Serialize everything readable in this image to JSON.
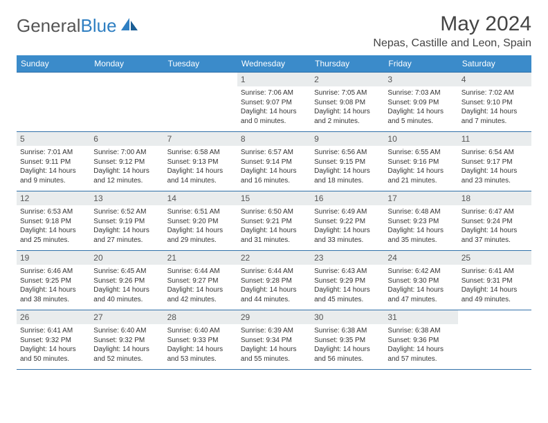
{
  "logo": {
    "text1": "General",
    "text2": "Blue"
  },
  "title": "May 2024",
  "location": "Nepas, Castille and Leon, Spain",
  "colors": {
    "header_bg": "#3b8bca",
    "header_text": "#ffffff",
    "row_separator": "#2f6fa8",
    "daynum_bg": "#e9eced",
    "text": "#333333",
    "logo_gray": "#555555",
    "logo_blue": "#2f7fc2"
  },
  "day_names": [
    "Sunday",
    "Monday",
    "Tuesday",
    "Wednesday",
    "Thursday",
    "Friday",
    "Saturday"
  ],
  "weeks": [
    [
      {
        "n": "",
        "sr": "",
        "ss": "",
        "dl1": "",
        "dl2": ""
      },
      {
        "n": "",
        "sr": "",
        "ss": "",
        "dl1": "",
        "dl2": ""
      },
      {
        "n": "",
        "sr": "",
        "ss": "",
        "dl1": "",
        "dl2": ""
      },
      {
        "n": "1",
        "sr": "Sunrise: 7:06 AM",
        "ss": "Sunset: 9:07 PM",
        "dl1": "Daylight: 14 hours",
        "dl2": "and 0 minutes."
      },
      {
        "n": "2",
        "sr": "Sunrise: 7:05 AM",
        "ss": "Sunset: 9:08 PM",
        "dl1": "Daylight: 14 hours",
        "dl2": "and 2 minutes."
      },
      {
        "n": "3",
        "sr": "Sunrise: 7:03 AM",
        "ss": "Sunset: 9:09 PM",
        "dl1": "Daylight: 14 hours",
        "dl2": "and 5 minutes."
      },
      {
        "n": "4",
        "sr": "Sunrise: 7:02 AM",
        "ss": "Sunset: 9:10 PM",
        "dl1": "Daylight: 14 hours",
        "dl2": "and 7 minutes."
      }
    ],
    [
      {
        "n": "5",
        "sr": "Sunrise: 7:01 AM",
        "ss": "Sunset: 9:11 PM",
        "dl1": "Daylight: 14 hours",
        "dl2": "and 9 minutes."
      },
      {
        "n": "6",
        "sr": "Sunrise: 7:00 AM",
        "ss": "Sunset: 9:12 PM",
        "dl1": "Daylight: 14 hours",
        "dl2": "and 12 minutes."
      },
      {
        "n": "7",
        "sr": "Sunrise: 6:58 AM",
        "ss": "Sunset: 9:13 PM",
        "dl1": "Daylight: 14 hours",
        "dl2": "and 14 minutes."
      },
      {
        "n": "8",
        "sr": "Sunrise: 6:57 AM",
        "ss": "Sunset: 9:14 PM",
        "dl1": "Daylight: 14 hours",
        "dl2": "and 16 minutes."
      },
      {
        "n": "9",
        "sr": "Sunrise: 6:56 AM",
        "ss": "Sunset: 9:15 PM",
        "dl1": "Daylight: 14 hours",
        "dl2": "and 18 minutes."
      },
      {
        "n": "10",
        "sr": "Sunrise: 6:55 AM",
        "ss": "Sunset: 9:16 PM",
        "dl1": "Daylight: 14 hours",
        "dl2": "and 21 minutes."
      },
      {
        "n": "11",
        "sr": "Sunrise: 6:54 AM",
        "ss": "Sunset: 9:17 PM",
        "dl1": "Daylight: 14 hours",
        "dl2": "and 23 minutes."
      }
    ],
    [
      {
        "n": "12",
        "sr": "Sunrise: 6:53 AM",
        "ss": "Sunset: 9:18 PM",
        "dl1": "Daylight: 14 hours",
        "dl2": "and 25 minutes."
      },
      {
        "n": "13",
        "sr": "Sunrise: 6:52 AM",
        "ss": "Sunset: 9:19 PM",
        "dl1": "Daylight: 14 hours",
        "dl2": "and 27 minutes."
      },
      {
        "n": "14",
        "sr": "Sunrise: 6:51 AM",
        "ss": "Sunset: 9:20 PM",
        "dl1": "Daylight: 14 hours",
        "dl2": "and 29 minutes."
      },
      {
        "n": "15",
        "sr": "Sunrise: 6:50 AM",
        "ss": "Sunset: 9:21 PM",
        "dl1": "Daylight: 14 hours",
        "dl2": "and 31 minutes."
      },
      {
        "n": "16",
        "sr": "Sunrise: 6:49 AM",
        "ss": "Sunset: 9:22 PM",
        "dl1": "Daylight: 14 hours",
        "dl2": "and 33 minutes."
      },
      {
        "n": "17",
        "sr": "Sunrise: 6:48 AM",
        "ss": "Sunset: 9:23 PM",
        "dl1": "Daylight: 14 hours",
        "dl2": "and 35 minutes."
      },
      {
        "n": "18",
        "sr": "Sunrise: 6:47 AM",
        "ss": "Sunset: 9:24 PM",
        "dl1": "Daylight: 14 hours",
        "dl2": "and 37 minutes."
      }
    ],
    [
      {
        "n": "19",
        "sr": "Sunrise: 6:46 AM",
        "ss": "Sunset: 9:25 PM",
        "dl1": "Daylight: 14 hours",
        "dl2": "and 38 minutes."
      },
      {
        "n": "20",
        "sr": "Sunrise: 6:45 AM",
        "ss": "Sunset: 9:26 PM",
        "dl1": "Daylight: 14 hours",
        "dl2": "and 40 minutes."
      },
      {
        "n": "21",
        "sr": "Sunrise: 6:44 AM",
        "ss": "Sunset: 9:27 PM",
        "dl1": "Daylight: 14 hours",
        "dl2": "and 42 minutes."
      },
      {
        "n": "22",
        "sr": "Sunrise: 6:44 AM",
        "ss": "Sunset: 9:28 PM",
        "dl1": "Daylight: 14 hours",
        "dl2": "and 44 minutes."
      },
      {
        "n": "23",
        "sr": "Sunrise: 6:43 AM",
        "ss": "Sunset: 9:29 PM",
        "dl1": "Daylight: 14 hours",
        "dl2": "and 45 minutes."
      },
      {
        "n": "24",
        "sr": "Sunrise: 6:42 AM",
        "ss": "Sunset: 9:30 PM",
        "dl1": "Daylight: 14 hours",
        "dl2": "and 47 minutes."
      },
      {
        "n": "25",
        "sr": "Sunrise: 6:41 AM",
        "ss": "Sunset: 9:31 PM",
        "dl1": "Daylight: 14 hours",
        "dl2": "and 49 minutes."
      }
    ],
    [
      {
        "n": "26",
        "sr": "Sunrise: 6:41 AM",
        "ss": "Sunset: 9:32 PM",
        "dl1": "Daylight: 14 hours",
        "dl2": "and 50 minutes."
      },
      {
        "n": "27",
        "sr": "Sunrise: 6:40 AM",
        "ss": "Sunset: 9:32 PM",
        "dl1": "Daylight: 14 hours",
        "dl2": "and 52 minutes."
      },
      {
        "n": "28",
        "sr": "Sunrise: 6:40 AM",
        "ss": "Sunset: 9:33 PM",
        "dl1": "Daylight: 14 hours",
        "dl2": "and 53 minutes."
      },
      {
        "n": "29",
        "sr": "Sunrise: 6:39 AM",
        "ss": "Sunset: 9:34 PM",
        "dl1": "Daylight: 14 hours",
        "dl2": "and 55 minutes."
      },
      {
        "n": "30",
        "sr": "Sunrise: 6:38 AM",
        "ss": "Sunset: 9:35 PM",
        "dl1": "Daylight: 14 hours",
        "dl2": "and 56 minutes."
      },
      {
        "n": "31",
        "sr": "Sunrise: 6:38 AM",
        "ss": "Sunset: 9:36 PM",
        "dl1": "Daylight: 14 hours",
        "dl2": "and 57 minutes."
      },
      {
        "n": "",
        "sr": "",
        "ss": "",
        "dl1": "",
        "dl2": ""
      }
    ]
  ]
}
